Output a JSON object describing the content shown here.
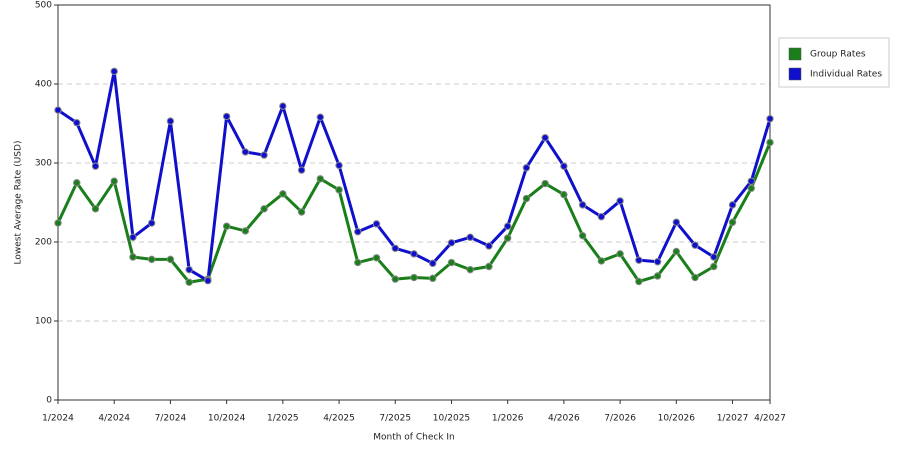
{
  "chart_data": {
    "type": "line",
    "x_label": "Month of Check In",
    "y_label": "Lowest Average Rate (USD)",
    "categories": [
      "1/2024",
      null,
      null,
      "4/2024",
      null,
      null,
      "7/2024",
      null,
      null,
      "10/2024",
      null,
      null,
      "1/2025",
      null,
      null,
      "4/2025",
      null,
      null,
      "7/2025",
      null,
      null,
      "10/2025",
      null,
      null,
      "1/2026",
      null,
      null,
      "4/2026",
      null,
      null,
      "7/2026",
      null,
      null,
      "10/2026",
      null,
      null,
      "1/2027",
      null,
      "4/2027"
    ],
    "series": [
      {
        "name": "Group Rates",
        "color": "#1a7f1a",
        "values": [
          224,
          275,
          242,
          277,
          181,
          178,
          178,
          149,
          153,
          220,
          214,
          242,
          261,
          238,
          280,
          266,
          174,
          180,
          153,
          155,
          154,
          174,
          165,
          169,
          205,
          255,
          274,
          260,
          208,
          176,
          185,
          150,
          157,
          188,
          155,
          169,
          225,
          268,
          326
        ]
      },
      {
        "name": "Individual Rates",
        "color": "#1010cc",
        "values": [
          367,
          351,
          296,
          416,
          206,
          224,
          353,
          165,
          151,
          359,
          314,
          310,
          372,
          291,
          358,
          297,
          213,
          223,
          192,
          185,
          173,
          199,
          206,
          195,
          220,
          294,
          332,
          296,
          247,
          232,
          252,
          177,
          175,
          225,
          196,
          181,
          247,
          277,
          356
        ]
      }
    ],
    "ylim": [
      0,
      500
    ],
    "yticks": [
      0,
      100,
      200,
      300,
      400,
      500
    ],
    "grid": true,
    "legend": "right"
  }
}
